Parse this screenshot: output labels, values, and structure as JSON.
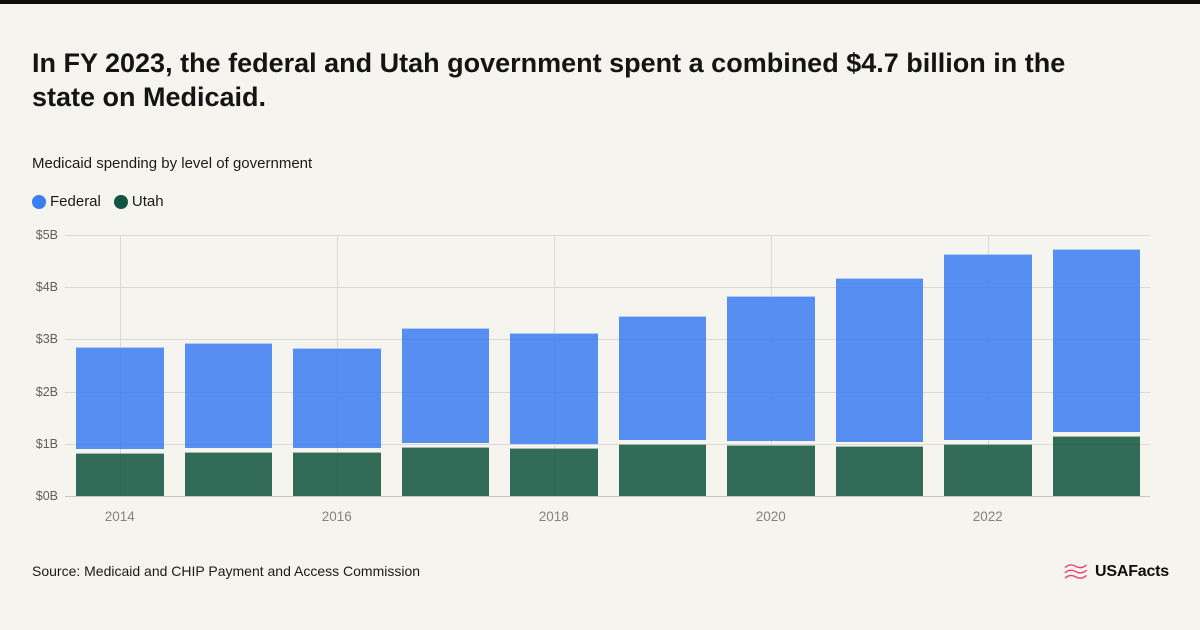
{
  "header": {
    "title": "In FY 2023, the federal and Utah government spent a combined $4.7 billion in the state on Medicaid."
  },
  "chart": {
    "subtitle": "Medicaid spending by level of government"
  },
  "chart_data": {
    "type": "bar",
    "stacked": true,
    "title": "Medicaid spending by level of government",
    "categories": [
      "2014",
      "2015",
      "2016",
      "2017",
      "2018",
      "2019",
      "2020",
      "2021",
      "2022",
      "2023"
    ],
    "series": [
      {
        "name": "Federal",
        "color": "#3B7EF2",
        "values": [
          2.01,
          2.07,
          1.97,
          2.25,
          2.18,
          2.43,
          2.83,
          3.2,
          3.62,
          3.55
        ]
      },
      {
        "name": "Utah",
        "color": "#11543F",
        "values": [
          0.85,
          0.87,
          0.87,
          0.97,
          0.95,
          1.02,
          1.0,
          0.98,
          1.02,
          1.18
        ]
      }
    ],
    "stack_bottom": "Utah",
    "ylim": [
      0,
      5
    ],
    "yticks": [
      "$0B",
      "$1B",
      "$2B",
      "$3B",
      "$4B",
      "$5B"
    ],
    "xticks": [
      "2014",
      "2016",
      "2018",
      "2020",
      "2022"
    ],
    "grid": true,
    "legend_position": "top-left"
  },
  "footer": {
    "source": "Source: Medicaid and CHIP Payment and Access Commission",
    "brand": "USAFacts"
  }
}
